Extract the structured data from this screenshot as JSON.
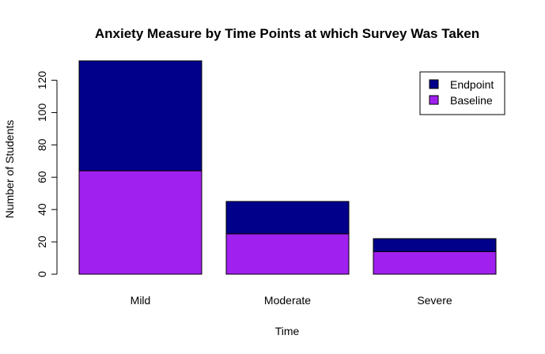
{
  "chart_data": {
    "type": "bar",
    "stacked": true,
    "title": "Anxiety Measure by Time Points at which Survey Was Taken",
    "xlabel": "Time",
    "ylabel": "Number of Students",
    "categories": [
      "Mild",
      "Moderate",
      "Severe"
    ],
    "series": [
      {
        "name": "Baseline",
        "values": [
          64,
          25,
          14
        ],
        "color": "#A020F0"
      },
      {
        "name": "Endpoint",
        "values": [
          68,
          20,
          8
        ],
        "color": "#00008B"
      }
    ],
    "ylim": [
      0,
      132
    ],
    "yticks": [
      0,
      20,
      40,
      60,
      80,
      100,
      120
    ],
    "legend": {
      "position": "top-right",
      "order": [
        "Endpoint",
        "Baseline"
      ]
    },
    "grid": false
  }
}
